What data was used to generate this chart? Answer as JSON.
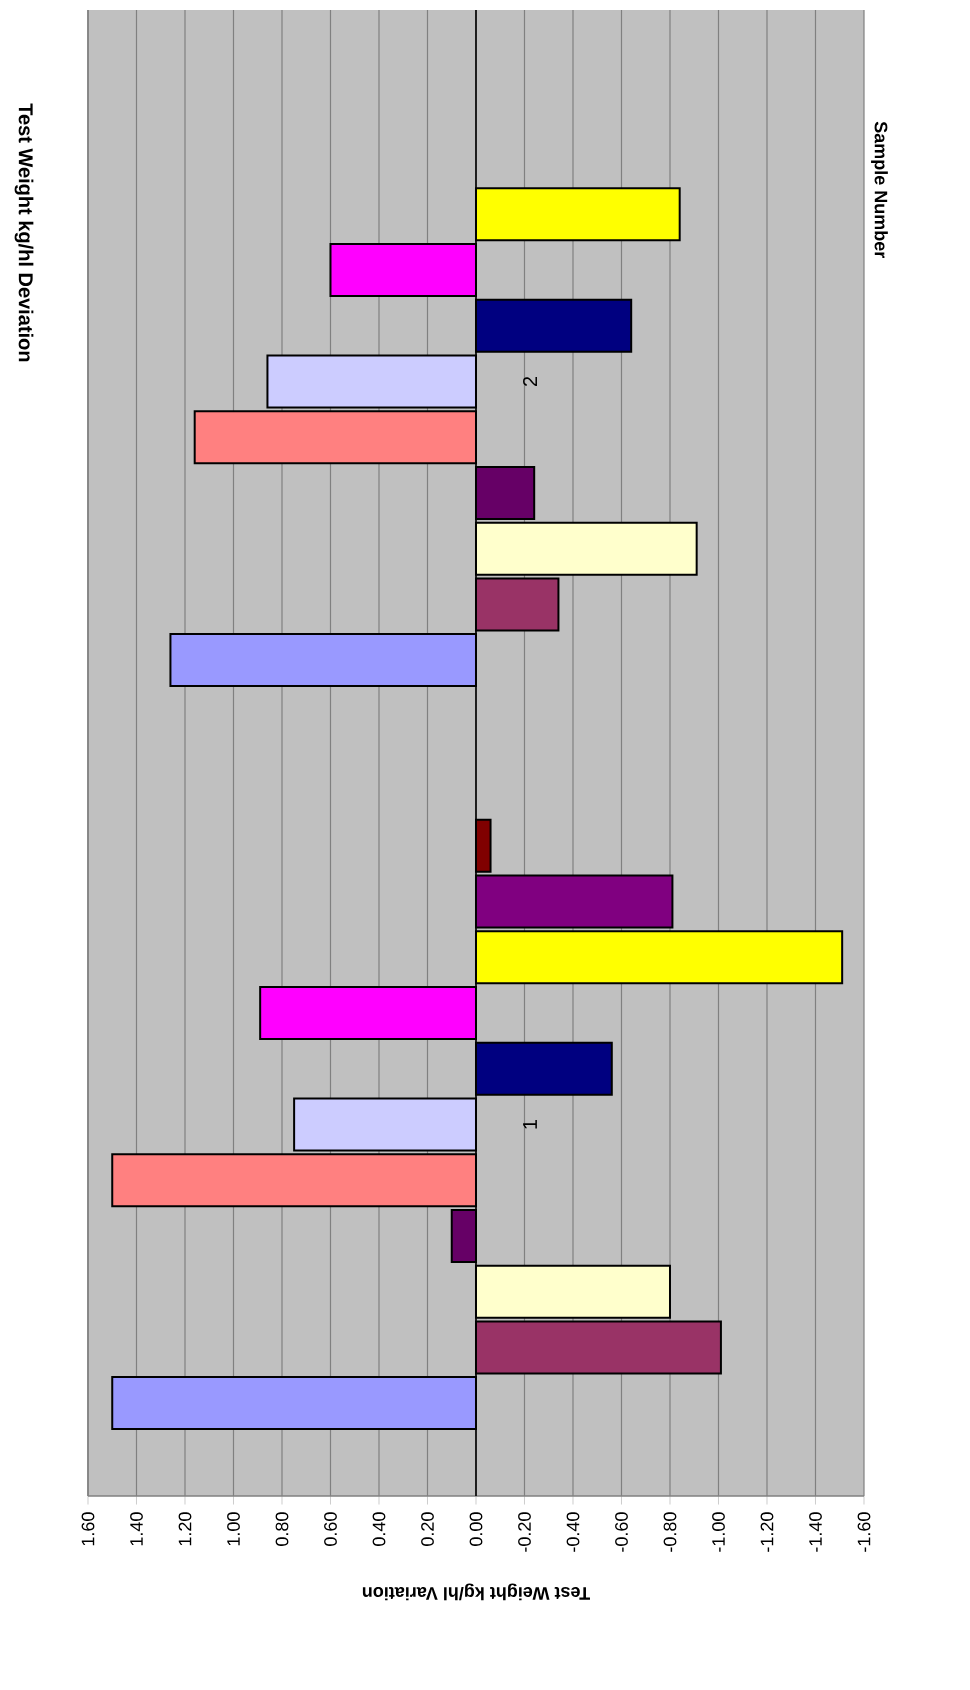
{
  "chart_data": {
    "type": "bar",
    "orientation": "horizontal",
    "title": "Test Weight kg/hl Deviation",
    "xlabel": "Test Weight kg/hl Variation",
    "ylabel": "Sample Number",
    "categories": [
      "2",
      "1"
    ],
    "series": [
      {
        "color": "#9999ff",
        "values": [
          1.26,
          1.5
        ]
      },
      {
        "color": "#993366",
        "values": [
          -0.34,
          -1.01
        ]
      },
      {
        "color": "#ffffcc",
        "values": [
          -0.91,
          -0.8
        ]
      },
      {
        "color": "#660066",
        "values": [
          -0.24,
          0.1
        ]
      },
      {
        "color": "#ff8080",
        "values": [
          1.16,
          1.5
        ]
      },
      {
        "color": "#ccccff",
        "values": [
          0.86,
          0.75
        ]
      },
      {
        "color": "#000080",
        "values": [
          -0.64,
          -0.56
        ]
      },
      {
        "color": "#ff00ff",
        "values": [
          0.6,
          0.89
        ]
      },
      {
        "color": "#ffff00",
        "values": [
          -0.84,
          -1.51
        ]
      },
      {
        "color": "#800080",
        "values": [
          null,
          -0.81
        ]
      },
      {
        "color": "#800000",
        "values": [
          null,
          -0.06
        ]
      }
    ],
    "xlim": [
      1.6,
      -1.6
    ],
    "xticks": [
      {
        "value": 1.6,
        "label": "1.60"
      },
      {
        "value": 1.4,
        "label": "1.40"
      },
      {
        "value": 1.2,
        "label": "1.20"
      },
      {
        "value": 1.0,
        "label": "1.00"
      },
      {
        "value": 0.8,
        "label": "0.80"
      },
      {
        "value": 0.6,
        "label": "0.60"
      },
      {
        "value": 0.4,
        "label": "0.40"
      },
      {
        "value": 0.2,
        "label": "0.20"
      },
      {
        "value": 0,
        "label": "0.00"
      },
      {
        "value": -0.2,
        "label": "-0.20"
      },
      {
        "value": -0.4,
        "label": "-0.40"
      },
      {
        "value": -0.6,
        "label": "-0.60"
      },
      {
        "value": -0.8,
        "label": "-0.80"
      },
      {
        "value": -1.0,
        "label": "-1.00"
      },
      {
        "value": -1.2,
        "label": "-1.20"
      },
      {
        "value": -1.4,
        "label": "-1.40"
      },
      {
        "value": -1.6,
        "label": "-1.60"
      }
    ],
    "grid": "x"
  }
}
